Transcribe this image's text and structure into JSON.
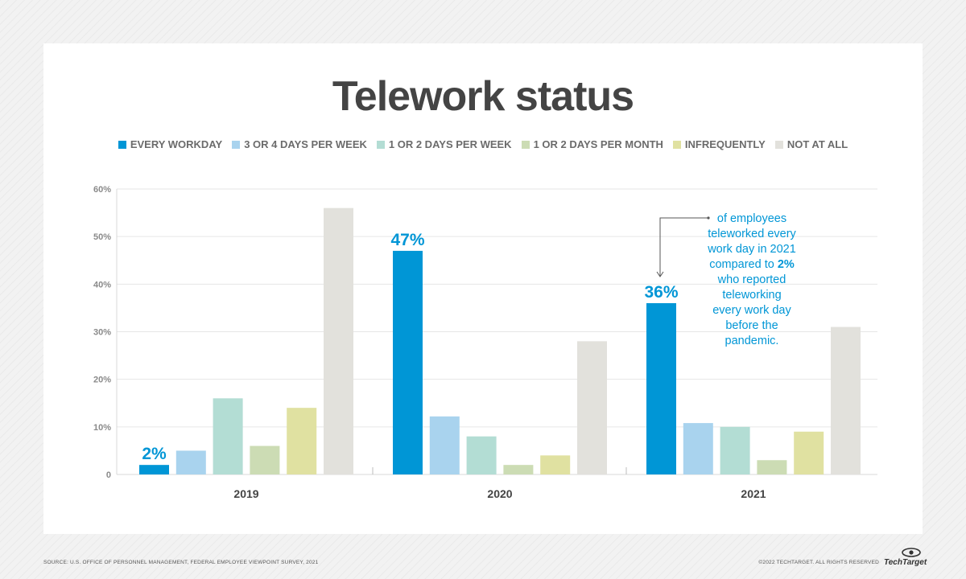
{
  "chart_data": {
    "type": "bar",
    "title": "Telework status",
    "categories": [
      "2019",
      "2020",
      "2021"
    ],
    "series": [
      {
        "name": "EVERY WORKDAY",
        "values": [
          2,
          47,
          36
        ],
        "color": "#0096d6"
      },
      {
        "name": "3 OR 4 DAYS PER WEEK",
        "values": [
          5,
          12.2,
          10.8
        ],
        "color": "#a9d3ee"
      },
      {
        "name": "1 OR 2 DAYS PER WEEK",
        "values": [
          16,
          8,
          10
        ],
        "color": "#b3ddd4"
      },
      {
        "name": "1 OR 2 DAYS PER MONTH",
        "values": [
          6,
          2,
          3
        ],
        "color": "#ccdcb4"
      },
      {
        "name": "INFREQUENTLY",
        "values": [
          14,
          4,
          9
        ],
        "color": "#e0e1a1"
      },
      {
        "name": "NOT AT ALL",
        "values": [
          56,
          28,
          31
        ],
        "color": "#e2e1dc"
      }
    ],
    "ylim": [
      0,
      60
    ],
    "yticks": [
      "0",
      "10%",
      "20%",
      "30%",
      "40%",
      "50%",
      "60%"
    ],
    "grid": true,
    "legend_position": "top",
    "data_labels": [
      {
        "category": "2019",
        "series": "EVERY WORKDAY",
        "text": "2%"
      },
      {
        "category": "2020",
        "series": "EVERY WORKDAY",
        "text": "47%"
      },
      {
        "category": "2021",
        "series": "EVERY WORKDAY",
        "text": "36%"
      }
    ],
    "annotation": {
      "lines": [
        [
          {
            "t": "of employees",
            "b": false
          }
        ],
        [
          {
            "t": "teleworked every",
            "b": false
          }
        ],
        [
          {
            "t": "work day in 2021",
            "b": false
          }
        ],
        [
          {
            "t": "compared to ",
            "b": false
          },
          {
            "t": "2%",
            "b": true
          }
        ],
        [
          {
            "t": "who reported",
            "b": false
          }
        ],
        [
          {
            "t": "teleworking",
            "b": false
          }
        ],
        [
          {
            "t": "every work day",
            "b": false
          }
        ],
        [
          {
            "t": "before the",
            "b": false
          }
        ],
        [
          {
            "t": "pandemic.",
            "b": false
          }
        ]
      ]
    }
  },
  "footer": {
    "source": "SOURCE: U.S. OFFICE OF PERSONNEL MANAGEMENT, FEDERAL EMPLOYEE VIEWPOINT SURVEY, 2021",
    "copyright": "©2022 TECHTARGET. ALL RIGHTS RESERVED",
    "brand": "TechTarget"
  }
}
